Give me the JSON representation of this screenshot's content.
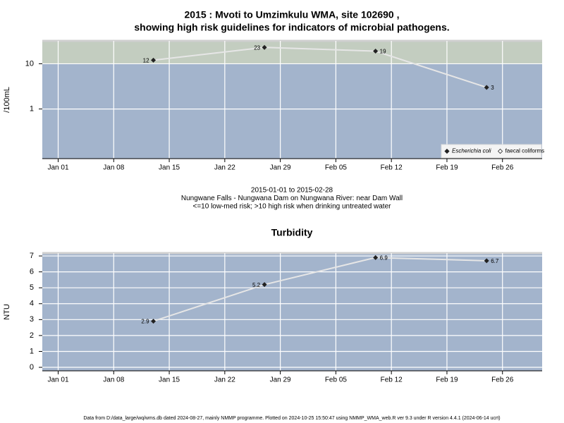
{
  "chart_data": [
    {
      "type": "line",
      "title": [
        "2015 : Mvoti to Umzimkulu WMA, site 102690 ,",
        "showing high risk guidelines for indicators of microbial pathogens."
      ],
      "ylabel": "/100mL",
      "x": [
        "2015-01-13",
        "2015-01-27",
        "2015-02-10",
        "2015-02-24"
      ],
      "series": [
        {
          "name": "Escherichia coli",
          "color": "#222222",
          "values": [
            12,
            23,
            19,
            3
          ]
        },
        {
          "name": "faecal coliforms",
          "color": "#222222",
          "values": [
            null,
            null,
            null,
            null
          ]
        }
      ],
      "ylog": true,
      "ylim": [
        0.08,
        32
      ],
      "yticks": [
        1,
        10
      ],
      "threshold": 10,
      "xlim": [
        "2014-12-30",
        "2015-03-03"
      ],
      "xticks": [
        {
          "value": "2015-01-01",
          "label": "Jan 01"
        },
        {
          "value": "2015-01-08",
          "label": "Jan 08"
        },
        {
          "value": "2015-01-15",
          "label": "Jan 15"
        },
        {
          "value": "2015-01-22",
          "label": "Jan 22"
        },
        {
          "value": "2015-01-29",
          "label": "Jan 29"
        },
        {
          "value": "2015-02-05",
          "label": "Feb 05"
        },
        {
          "value": "2015-02-12",
          "label": "Feb 12"
        },
        {
          "value": "2015-02-19",
          "label": "Feb 19"
        },
        {
          "value": "2015-02-26",
          "label": "Feb 26"
        }
      ],
      "grid": true,
      "legend": "bottom right",
      "notes": [
        "2015-01-01 to 2015-02-28",
        "Nungwane Falls - Nungwana Dam on Nungwana River: near Dam Wall",
        "<=10 low-med risk; >10 high risk when drinking untreated water"
      ]
    },
    {
      "type": "line",
      "title": [
        "Turbidity"
      ],
      "ylabel": "NTU",
      "x": [
        "2015-01-13",
        "2015-01-27",
        "2015-02-10",
        "2015-02-24"
      ],
      "series": [
        {
          "color": "#222222",
          "values": [
            2.9,
            5.2,
            6.9,
            6.7
          ]
        }
      ],
      "ylim": [
        -0.22,
        7.18
      ],
      "yticks": [
        0,
        1,
        2,
        3,
        4,
        5,
        6,
        7
      ],
      "xlim": [
        "2014-12-30",
        "2015-03-03"
      ],
      "xticks": [
        {
          "value": "2015-01-01",
          "label": "Jan 01"
        },
        {
          "value": "2015-01-08",
          "label": "Jan 08"
        },
        {
          "value": "2015-01-15",
          "label": "Jan 15"
        },
        {
          "value": "2015-01-22",
          "label": "Jan 22"
        },
        {
          "value": "2015-01-29",
          "label": "Jan 29"
        },
        {
          "value": "2015-02-05",
          "label": "Feb 05"
        },
        {
          "value": "2015-02-12",
          "label": "Feb 12"
        },
        {
          "value": "2015-02-19",
          "label": "Feb 19"
        },
        {
          "value": "2015-02-26",
          "label": "Feb 26"
        }
      ],
      "grid": true
    }
  ],
  "footer": "Data from D:/data_large/wq/wms.db dated 2024-08-27, mainly NMMP programme. Plotted on 2024-10-25 15:50:47 using NMMP_WMA_web.R ver 9.3 under R version 4.4.1 (2024-06-14 ucrt)"
}
